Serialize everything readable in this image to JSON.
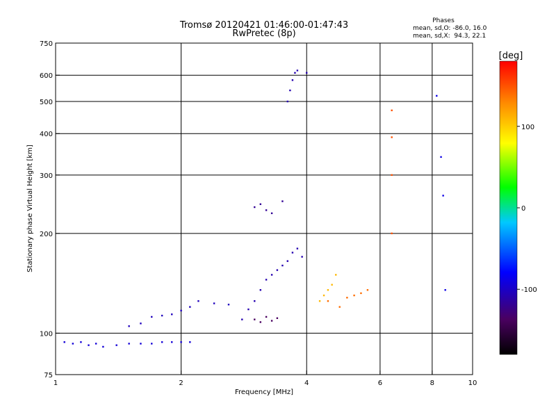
{
  "chart_data": {
    "type": "scatter",
    "title": "Tromsø 20120421 01:46:00-01:47:43",
    "subtitle": "RwPretec (8p)",
    "xlabel": "Frequency [MHz]",
    "ylabel": "Stationary phase Virtual Height [km]",
    "xscale": "log",
    "yscale": "log",
    "xlim": [
      1,
      10
    ],
    "ylim": [
      75,
      750
    ],
    "x_ticks": [
      1,
      2,
      4,
      6,
      8,
      10
    ],
    "y_ticks": [
      75,
      100,
      200,
      300,
      400,
      500,
      600,
      750
    ],
    "grid": true,
    "stats": {
      "heading": "Phases",
      "line_o": "mean, sd,O: -86.0, 16.0",
      "line_x": "mean, sd,X:  94.3, 22.1"
    },
    "colorbar": {
      "label": "[deg]",
      "range": [
        -180,
        180
      ],
      "ticks": [
        100,
        0,
        -100
      ]
    },
    "series": [
      {
        "x": [
          1.05,
          1.1,
          1.15,
          1.2,
          1.25,
          1.3,
          1.4,
          1.5,
          1.6,
          1.7,
          1.8,
          1.9,
          2.0,
          2.1
        ],
        "y": [
          94,
          93,
          94,
          92,
          93,
          91,
          92,
          93,
          93,
          93,
          94,
          94,
          94,
          94
        ],
        "phase": -95
      },
      {
        "x": [
          1.5,
          1.6,
          1.7,
          1.8,
          1.9,
          2.0,
          2.1,
          2.2,
          2.4,
          2.6
        ],
        "y": [
          105,
          107,
          112,
          113,
          114,
          117,
          120,
          125,
          123,
          122
        ],
        "phase": -105
      },
      {
        "x": [
          2.8,
          2.9,
          3.0,
          3.1,
          3.2,
          3.3,
          3.4,
          3.5,
          3.6,
          3.7,
          3.8,
          3.9
        ],
        "y": [
          110,
          118,
          125,
          135,
          145,
          150,
          155,
          160,
          165,
          175,
          180,
          170
        ],
        "phase": -110
      },
      {
        "x": [
          3.0,
          3.1,
          3.2,
          3.3,
          3.4
        ],
        "y": [
          110,
          108,
          112,
          109,
          111
        ],
        "phase": -140
      },
      {
        "x": [
          3.0,
          3.1,
          3.2,
          3.3,
          3.5
        ],
        "y": [
          240,
          245,
          235,
          230,
          250
        ],
        "phase": -120
      },
      {
        "x": [
          3.6,
          3.65,
          3.7,
          3.75,
          3.8,
          4.0
        ],
        "y": [
          500,
          540,
          580,
          610,
          620,
          610
        ],
        "phase": -110
      },
      {
        "x": [
          4.3,
          4.4,
          4.5,
          4.6,
          4.7
        ],
        "y": [
          125,
          130,
          135,
          140,
          150
        ],
        "phase": 110
      },
      {
        "x": [
          4.5,
          4.8,
          5.0,
          5.2,
          5.4,
          5.6
        ],
        "y": [
          125,
          120,
          128,
          130,
          132,
          135
        ],
        "phase": 140
      },
      {
        "x": [
          6.4,
          6.4,
          6.4,
          6.4
        ],
        "y": [
          470,
          390,
          300,
          200
        ],
        "phase": 150
      },
      {
        "x": [
          8.2,
          8.4,
          8.5,
          8.6
        ],
        "y": [
          520,
          340,
          260,
          135
        ],
        "phase": -90
      }
    ]
  }
}
